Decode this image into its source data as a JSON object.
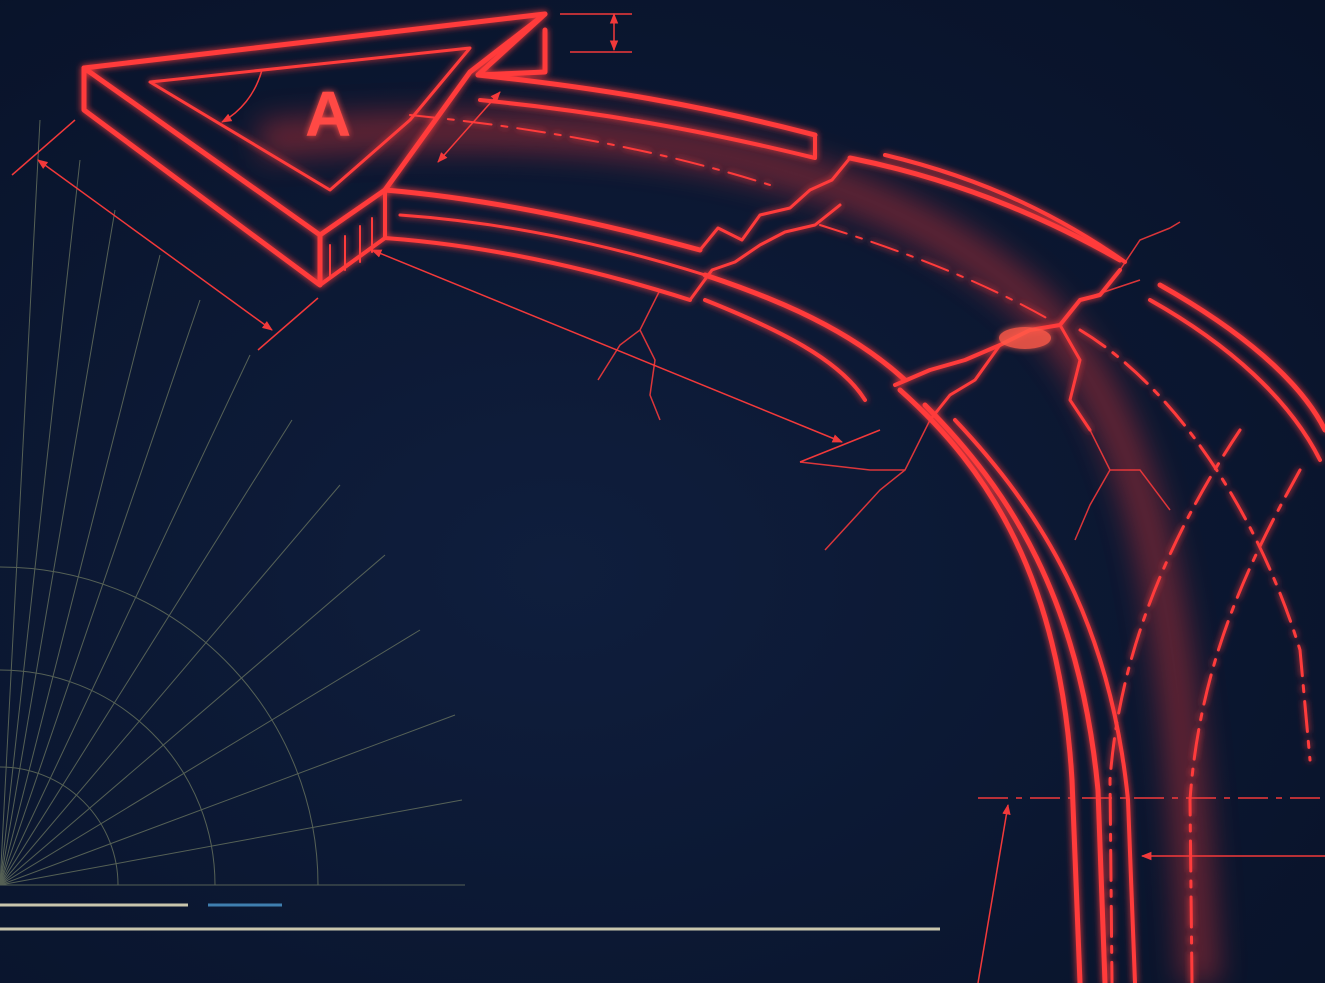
{
  "illustration": {
    "arrow_letter": "A"
  },
  "colors": {
    "background": "#0b1731",
    "blueprint_red": "#ff3b3b",
    "glow_red": "#ff5a4a",
    "grid_line": "#6f7a62",
    "guide_line_light": "#c9c6ad",
    "guide_line_blue": "#3f7fb0"
  }
}
